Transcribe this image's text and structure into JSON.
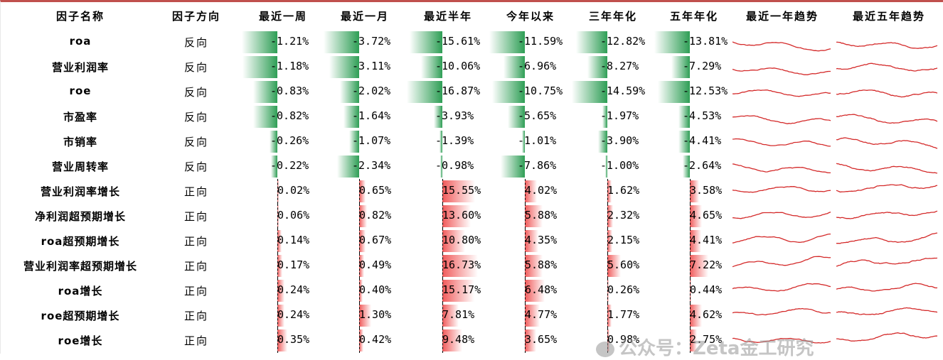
{
  "chart_data": {
    "type": "table",
    "columns": [
      "因子名称",
      "因子方向",
      "最近一周",
      "最近一月",
      "最近半年",
      "今年以来",
      "三年年化",
      "五年年化",
      "最近一年趋势",
      "最近五年趋势"
    ],
    "rows": [
      {
        "name": "roa",
        "direction": "反向",
        "values": [
          -1.21,
          -3.72,
          -15.61,
          -11.59,
          -12.82,
          -13.81
        ],
        "labels": [
          "-1.21%",
          "-3.72%",
          "-15.61%",
          "-11.59%",
          "-12.82%",
          "-13.81%"
        ]
      },
      {
        "name": "营业利润率",
        "direction": "反向",
        "values": [
          -1.18,
          -3.11,
          -10.06,
          -6.96,
          -8.27,
          -7.29
        ],
        "labels": [
          "-1.18%",
          "-3.11%",
          "-10.06%",
          "-6.96%",
          "-8.27%",
          "-7.29%"
        ]
      },
      {
        "name": "roe",
        "direction": "反向",
        "values": [
          -0.83,
          -2.02,
          -16.87,
          -10.75,
          -14.59,
          -12.53
        ],
        "labels": [
          "-0.83%",
          "-2.02%",
          "-16.87%",
          "-10.75%",
          "-14.59%",
          "-12.53%"
        ]
      },
      {
        "name": "市盈率",
        "direction": "反向",
        "values": [
          -0.82,
          -1.64,
          -3.93,
          -5.65,
          -1.97,
          -4.53
        ],
        "labels": [
          "-0.82%",
          "-1.64%",
          "-3.93%",
          "-5.65%",
          "-1.97%",
          "-4.53%"
        ]
      },
      {
        "name": "市销率",
        "direction": "反向",
        "values": [
          -0.26,
          -1.07,
          -1.39,
          -1.01,
          -3.9,
          -4.41
        ],
        "labels": [
          "-0.26%",
          "-1.07%",
          "-1.39%",
          "-1.01%",
          "-3.90%",
          "-4.41%"
        ]
      },
      {
        "name": "营业周转率",
        "direction": "反向",
        "values": [
          -0.22,
          -2.34,
          -0.98,
          -7.86,
          -1.0,
          -2.64
        ],
        "labels": [
          "-0.22%",
          "-2.34%",
          "-0.98%",
          "-7.86%",
          "-1.00%",
          "-2.64%"
        ]
      },
      {
        "name": "营业利润率增长",
        "direction": "正向",
        "values": [
          0.02,
          0.65,
          15.55,
          4.02,
          1.62,
          3.58
        ],
        "labels": [
          "0.02%",
          "0.65%",
          "15.55%",
          "4.02%",
          "1.62%",
          "3.58%"
        ]
      },
      {
        "name": "净利润超预期增长",
        "direction": "正向",
        "values": [
          0.06,
          0.82,
          13.6,
          5.88,
          2.32,
          4.65
        ],
        "labels": [
          "0.06%",
          "0.82%",
          "13.60%",
          "5.88%",
          "2.32%",
          "4.65%"
        ]
      },
      {
        "name": "roa超预期增长",
        "direction": "正向",
        "values": [
          0.14,
          0.67,
          10.8,
          4.35,
          2.15,
          4.41
        ],
        "labels": [
          "0.14%",
          "0.67%",
          "10.80%",
          "4.35%",
          "2.15%",
          "4.41%"
        ]
      },
      {
        "name": "营业利润率超预期增长",
        "direction": "正向",
        "values": [
          0.17,
          0.49,
          16.73,
          5.88,
          5.6,
          7.22
        ],
        "labels": [
          "0.17%",
          "0.49%",
          "16.73%",
          "5.88%",
          "5.60%",
          "7.22%"
        ]
      },
      {
        "name": "roa增长",
        "direction": "正向",
        "values": [
          0.24,
          0.4,
          15.17,
          6.48,
          0.26,
          0.44
        ],
        "labels": [
          "0.24%",
          "0.40%",
          "15.17%",
          "6.48%",
          "0.26%",
          "0.44%"
        ]
      },
      {
        "name": "roe超预期增长",
        "direction": "正向",
        "values": [
          0.24,
          1.3,
          7.81,
          4.77,
          1.77,
          4.62
        ],
        "labels": [
          "0.24%",
          "1.30%",
          "7.81%",
          "4.77%",
          "1.77%",
          "4.62%"
        ]
      },
      {
        "name": "roe增长",
        "direction": "正向",
        "values": [
          0.35,
          0.42,
          9.48,
          3.65,
          0.98,
          2.75
        ],
        "labels": [
          "0.35%",
          "0.42%",
          "9.48%",
          "3.65%",
          "0.98%",
          "2.75%"
        ]
      }
    ],
    "column_max_abs": [
      1.21,
      3.72,
      16.87,
      11.59,
      14.59,
      13.81
    ],
    "colors": {
      "negative": "#2e9e55",
      "positive": "#f05a5a",
      "sparkline": "#d42a2a",
      "accent": "#c0504d"
    }
  },
  "watermark": "公众号：Zeta金工研究"
}
